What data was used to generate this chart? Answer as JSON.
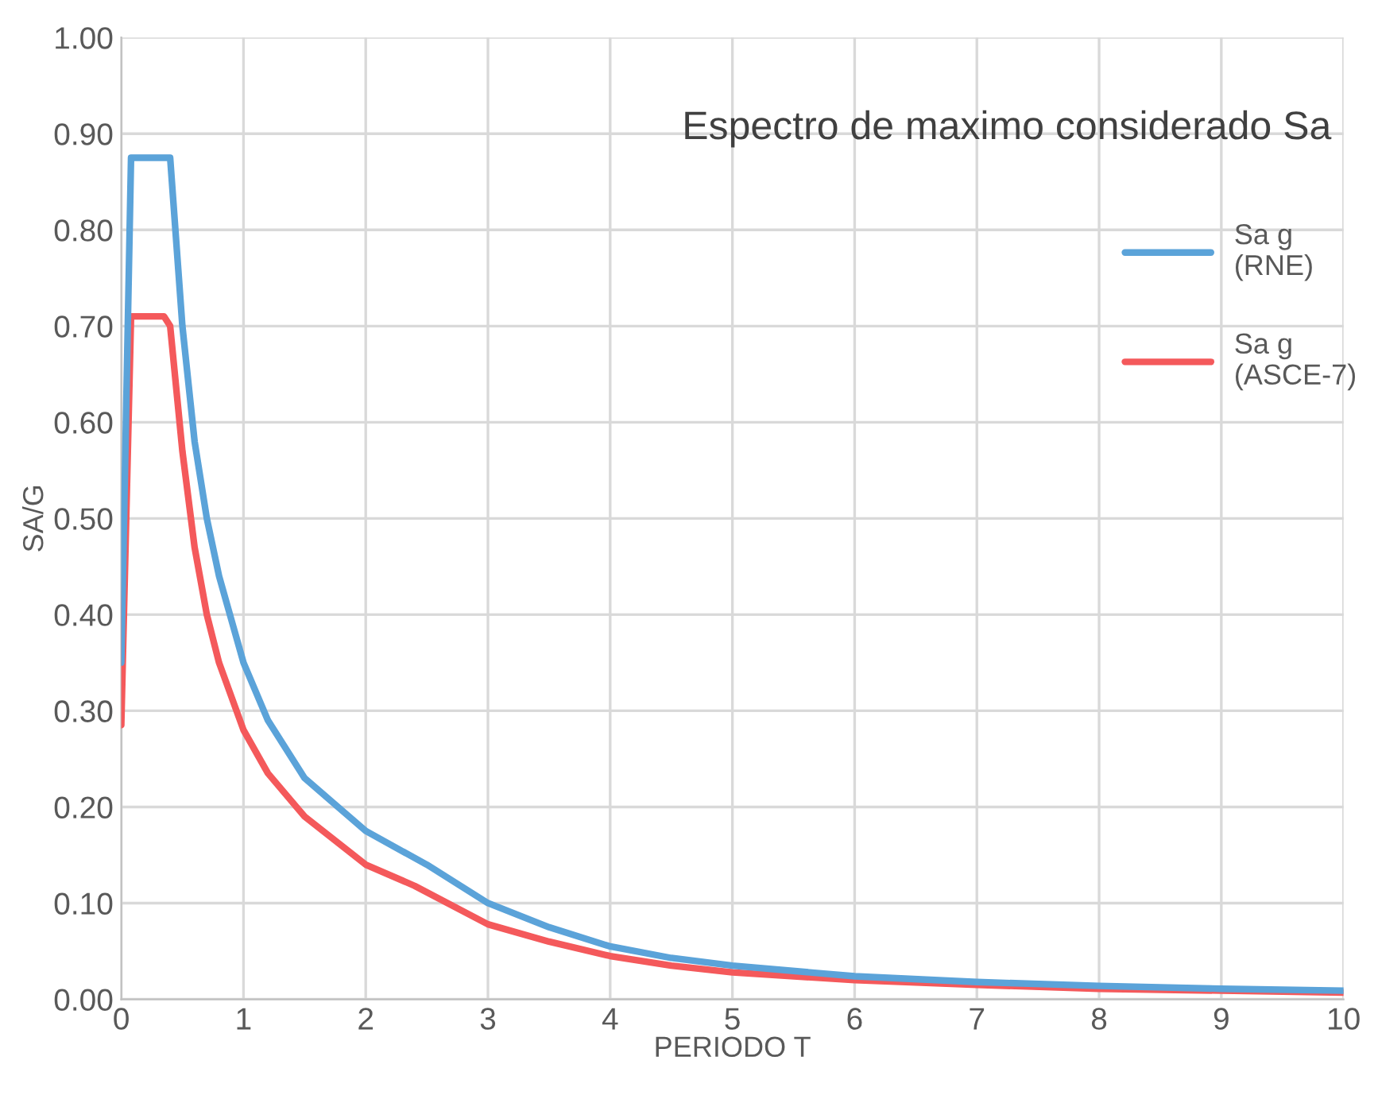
{
  "chart_data": {
    "type": "line",
    "title": "Espectro de maximo considerado Sa",
    "xlabel": "PERIODO T",
    "ylabel": "SA/G",
    "xlim": [
      0,
      10
    ],
    "xticks": [
      0,
      1,
      2,
      3,
      4,
      5,
      6,
      7,
      8,
      9,
      10
    ],
    "ylim": [
      0,
      1
    ],
    "yticks": [
      {
        "value": 0,
        "label": "0.00"
      },
      {
        "value": 0.1,
        "label": "0.10"
      },
      {
        "value": 0.2,
        "label": "0.20"
      },
      {
        "value": 0.3,
        "label": "0.30"
      },
      {
        "value": 0.4,
        "label": "0.40"
      },
      {
        "value": 0.5,
        "label": "0.50"
      },
      {
        "value": 0.6,
        "label": "0.60"
      },
      {
        "value": 0.7,
        "label": "0.70"
      },
      {
        "value": 0.8,
        "label": "0.80"
      },
      {
        "value": 0.9,
        "label": "0.90"
      },
      {
        "value": 1,
        "label": "1.00"
      }
    ],
    "grid": true,
    "legend": "right",
    "marker": "none",
    "line_style": "solid",
    "series": [
      {
        "name": "Sa g\n(RNE)",
        "color": "#5ba3d9",
        "x": [
          0,
          0.08,
          0.4,
          0.5,
          0.6,
          0.7,
          0.8,
          1,
          1.2,
          1.5,
          2,
          2.5,
          3,
          3.5,
          4,
          4.5,
          5,
          6,
          7,
          8,
          9,
          10
        ],
        "values": [
          0.35,
          0.875,
          0.875,
          0.7,
          0.58,
          0.5,
          0.44,
          0.35,
          0.29,
          0.23,
          0.175,
          0.14,
          0.1,
          0.075,
          0.055,
          0.043,
          0.035,
          0.024,
          0.018,
          0.014,
          0.011,
          0.009
        ]
      },
      {
        "name": "Sa g\n(ASCE-7)",
        "color": "#f4595b",
        "x": [
          0,
          0.08,
          0.35,
          0.4,
          0.5,
          0.6,
          0.7,
          0.8,
          1,
          1.2,
          1.5,
          2,
          2.4,
          3,
          3.5,
          4,
          4.5,
          5,
          6,
          7,
          8,
          9,
          10
        ],
        "values": [
          0.285,
          0.71,
          0.71,
          0.7,
          0.57,
          0.47,
          0.4,
          0.35,
          0.28,
          0.235,
          0.19,
          0.14,
          0.118,
          0.078,
          0.06,
          0.045,
          0.035,
          0.028,
          0.02,
          0.015,
          0.011,
          0.009,
          0.007
        ]
      }
    ]
  }
}
